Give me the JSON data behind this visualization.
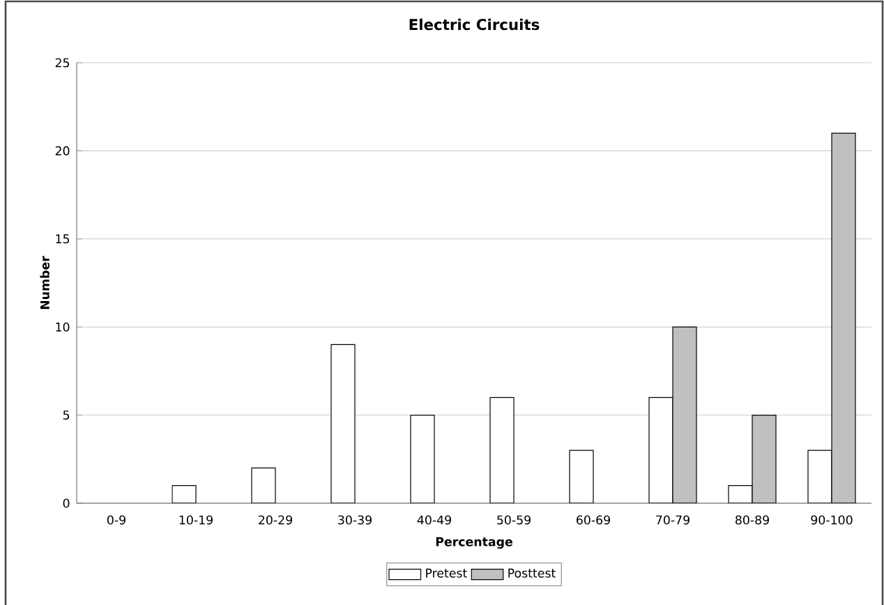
{
  "chart_data": {
    "type": "bar",
    "title": "Electric Circuits",
    "xlabel": "Percentage",
    "ylabel": "Number",
    "categories": [
      "0-9",
      "10-19",
      "20-29",
      "30-39",
      "40-49",
      "50-59",
      "60-69",
      "70-79",
      "80-89",
      "90-100"
    ],
    "series": [
      {
        "name": "Pretest",
        "color": "#ffffff",
        "values": [
          null,
          1,
          2,
          9,
          5,
          6,
          3,
          6,
          1,
          3
        ]
      },
      {
        "name": "Posttest",
        "color": "#c0c0c0",
        "values": [
          null,
          null,
          null,
          null,
          null,
          null,
          null,
          10,
          5,
          21
        ]
      }
    ],
    "ylim": [
      0,
      25
    ],
    "yticks": [
      0,
      5,
      10,
      15,
      20,
      25
    ],
    "grid": "y",
    "legend": "bottom"
  }
}
